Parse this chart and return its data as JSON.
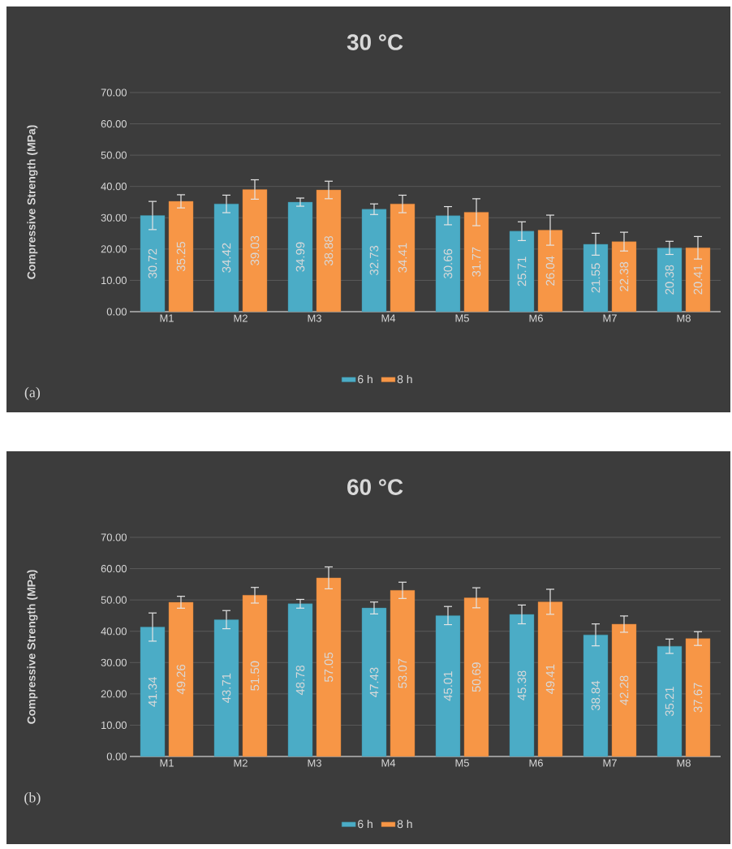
{
  "chart_data": [
    {
      "type": "bar",
      "title": "30 °C",
      "ylabel": "Compressive Strength (MPa)",
      "categories": [
        "M1",
        "M2",
        "M3",
        "M4",
        "M5",
        "M6",
        "M7",
        "M8"
      ],
      "series": [
        {
          "name": "6 h",
          "color": "#4bacc6",
          "values": [
            30.72,
            34.42,
            34.99,
            32.73,
            30.66,
            25.71,
            21.55,
            20.38
          ],
          "errors": [
            4.5,
            2.8,
            1.3,
            1.7,
            2.9,
            3.0,
            3.5,
            2.1
          ],
          "value_labels": [
            "30.72",
            "34.42",
            "34.99",
            "32.73",
            "30.66",
            "25.71",
            "21.55",
            "20.38"
          ]
        },
        {
          "name": "8 h",
          "color": "#f79646",
          "values": [
            35.25,
            39.03,
            38.88,
            34.41,
            31.77,
            26.04,
            22.38,
            20.41
          ],
          "errors": [
            2.1,
            3.1,
            2.8,
            2.8,
            4.3,
            4.8,
            3.0,
            3.6
          ],
          "value_labels": [
            "35.25",
            "39.03",
            "38.88",
            "34.41",
            "31.77",
            "26.04",
            "22.38",
            "20.41"
          ]
        }
      ],
      "ylim": [
        0,
        70
      ],
      "yticks": [
        {
          "value": 0,
          "label": "0.00"
        },
        {
          "value": 10,
          "label": "10.00"
        },
        {
          "value": 20,
          "label": "20.00"
        },
        {
          "value": 30,
          "label": "30.00"
        },
        {
          "value": 40,
          "label": "40.00"
        },
        {
          "value": 50,
          "label": "50.00"
        },
        {
          "value": 60,
          "label": "60.00"
        },
        {
          "value": 70,
          "label": "70.00"
        }
      ],
      "grid": "y",
      "legend": "bottom",
      "annotations": [
        "(a)"
      ]
    },
    {
      "type": "bar",
      "title": "60 °C",
      "ylabel": "Compressive Strength (MPa)",
      "categories": [
        "M1",
        "M2",
        "M3",
        "M4",
        "M5",
        "M6",
        "M7",
        "M8"
      ],
      "series": [
        {
          "name": "6 h",
          "color": "#4bacc6",
          "values": [
            41.34,
            43.71,
            48.78,
            47.43,
            45.01,
            45.38,
            38.84,
            35.21
          ],
          "errors": [
            4.5,
            2.9,
            1.4,
            1.9,
            2.9,
            3.0,
            3.5,
            2.3
          ],
          "value_labels": [
            "41.34",
            "43.71",
            "48.78",
            "47.43",
            "45.01",
            "45.38",
            "38.84",
            "35.21"
          ]
        },
        {
          "name": "8 h",
          "color": "#f79646",
          "values": [
            49.26,
            51.5,
            57.05,
            53.07,
            50.69,
            49.41,
            42.28,
            37.67
          ],
          "errors": [
            1.9,
            2.5,
            3.5,
            2.6,
            3.2,
            4.0,
            2.6,
            2.2
          ],
          "value_labels": [
            "49.26",
            "51.50",
            "57.05",
            "53.07",
            "50.69",
            "49.41",
            "42.28",
            "37.67"
          ]
        }
      ],
      "ylim": [
        0,
        70
      ],
      "yticks": [
        {
          "value": 0,
          "label": "0.00"
        },
        {
          "value": 10,
          "label": "10.00"
        },
        {
          "value": 20,
          "label": "20.00"
        },
        {
          "value": 30,
          "label": "30.00"
        },
        {
          "value": 40,
          "label": "40.00"
        },
        {
          "value": 50,
          "label": "50.00"
        },
        {
          "value": 60,
          "label": "60.00"
        },
        {
          "value": 70,
          "label": "70.00"
        }
      ],
      "grid": "y",
      "legend": "bottom",
      "annotations": [
        "(b)"
      ]
    }
  ]
}
